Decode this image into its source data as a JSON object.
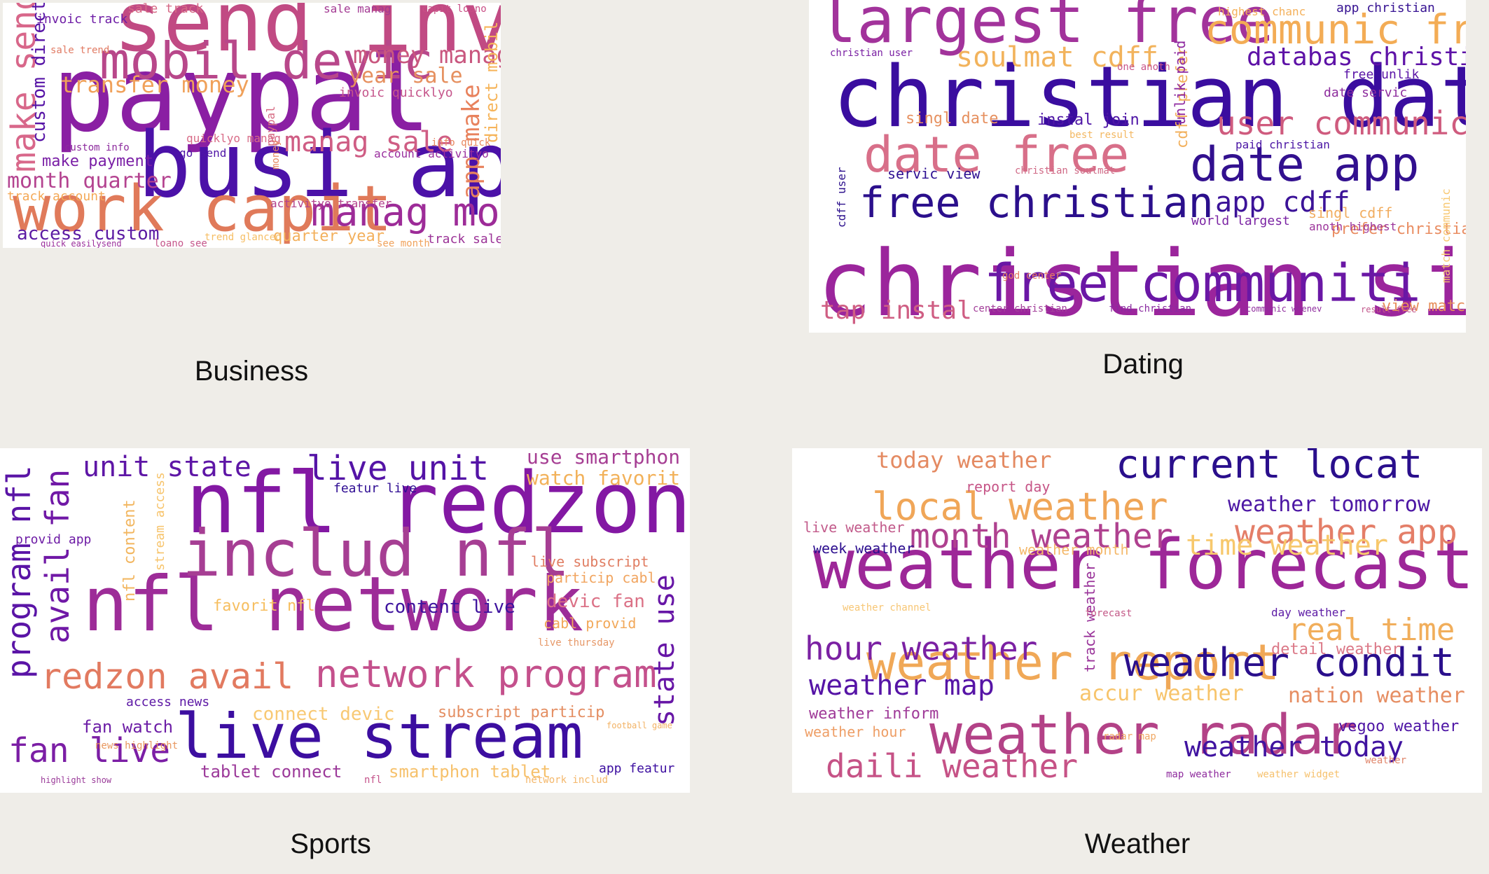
{
  "panels": [
    {
      "caption": "Business",
      "words": [
        {
          "t": "paypal busi",
          "s": 150,
          "c": "#8a1fa3"
        },
        {
          "t": "busi app",
          "s": 128,
          "c": "#4b11a8"
        },
        {
          "t": "send invoic",
          "s": 118,
          "c": "#c14a83"
        },
        {
          "t": "work capit",
          "s": 90,
          "c": "#e07a5a"
        },
        {
          "t": "mobil devic",
          "s": 72,
          "c": "#b8478a"
        },
        {
          "t": "manag money",
          "s": 56,
          "c": "#9d2c98"
        },
        {
          "t": "make send",
          "s": 48,
          "c": "#d8678a"
        },
        {
          "t": "money manag",
          "s": 34,
          "c": "#c9577f"
        },
        {
          "t": "app make",
          "s": 34,
          "c": "#e8825d"
        },
        {
          "t": "transfer money",
          "s": 32,
          "c": "#f0a15a"
        },
        {
          "t": "manag sale",
          "s": 40,
          "c": "#cf5d84"
        },
        {
          "t": "month quarter",
          "s": 30,
          "c": "#b44390"
        },
        {
          "t": "year sale",
          "s": 30,
          "c": "#e6905f"
        },
        {
          "t": "access custom",
          "s": 26,
          "c": "#5c1ba3"
        },
        {
          "t": "quarter year",
          "s": 22,
          "c": "#f3b05c"
        },
        {
          "t": "make payment",
          "s": 22,
          "c": "#7a1fa6"
        },
        {
          "t": "track sale",
          "s": 18,
          "c": "#9b3397"
        },
        {
          "t": "custom direct",
          "s": 26,
          "c": "#5613a6"
        },
        {
          "t": "direct mobil",
          "s": 24,
          "c": "#f6b45a"
        },
        {
          "t": "invoic quicklyo",
          "s": 18,
          "c": "#c5558b"
        },
        {
          "t": "account activityo",
          "s": 16,
          "c": "#9a2f9e"
        },
        {
          "t": "track account",
          "s": 18,
          "c": "#f4a855"
        },
        {
          "t": "sale track",
          "s": 18,
          "c": "#d66a86"
        },
        {
          "t": "invoic track",
          "s": 18,
          "c": "#6e1da6"
        },
        {
          "t": "capit loano",
          "s": 14,
          "c": "#c94f86"
        },
        {
          "t": "sale manag",
          "s": 16,
          "c": "#a33a93"
        },
        {
          "t": "see month",
          "s": 14,
          "c": "#f0a35c"
        },
        {
          "t": "go send",
          "s": 16,
          "c": "#4f14a6"
        },
        {
          "t": "quicklyo manag",
          "s": 16,
          "c": "#d86b87"
        },
        {
          "t": "custom info",
          "s": 14,
          "c": "#8c2a9d"
        },
        {
          "t": "info quick",
          "s": 14,
          "c": "#e8875f"
        },
        {
          "t": "sale trend",
          "s": 14,
          "c": "#e17b64"
        },
        {
          "t": "activityo transfer",
          "s": 16,
          "c": "#b3428c"
        },
        {
          "t": "trend glanceo",
          "s": 14,
          "c": "#f6be64"
        },
        {
          "t": "quick easilysend",
          "s": 12,
          "c": "#9b2f9c"
        },
        {
          "t": "loano see",
          "s": 14,
          "c": "#c6578b"
        },
        {
          "t": "paypal",
          "s": 16,
          "c": "#d66b83"
        },
        {
          "t": "money",
          "s": 14,
          "c": "#e78861"
        }
      ]
    },
    {
      "caption": "Dating",
      "words": [
        {
          "t": "christian singl",
          "s": 130,
          "c": "#9b259c"
        },
        {
          "t": "christian date",
          "s": 120,
          "c": "#3a0d9f"
        },
        {
          "t": "largest free",
          "s": 90,
          "c": "#a2339b"
        },
        {
          "t": "free communiti",
          "s": 74,
          "c": "#6a17a5"
        },
        {
          "t": "date free",
          "s": 70,
          "c": "#d86f89"
        },
        {
          "t": "date app",
          "s": 68,
          "c": "#32108f"
        },
        {
          "t": "free christian",
          "s": 60,
          "c": "#2b0f8c"
        },
        {
          "t": "communic free",
          "s": 58,
          "c": "#f3ac55"
        },
        {
          "t": "user communic",
          "s": 46,
          "c": "#cf5b7e"
        },
        {
          "t": "soulmat cdff",
          "s": 40,
          "c": "#f2b35c"
        },
        {
          "t": "app cdff",
          "s": 40,
          "c": "#3b1298"
        },
        {
          "t": "databas christian",
          "s": 36,
          "c": "#5e12a7"
        },
        {
          "t": "tap instal",
          "s": 36,
          "c": "#cf5e83"
        },
        {
          "t": "singl date",
          "s": 22,
          "c": "#e6905f"
        },
        {
          "t": "instal join",
          "s": 22,
          "c": "#4e15a6"
        },
        {
          "t": "view match",
          "s": 22,
          "c": "#e7905d"
        },
        {
          "t": "servic view",
          "s": 20,
          "c": "#2e1092"
        },
        {
          "t": "singl cdff",
          "s": 20,
          "c": "#f1ad60"
        },
        {
          "t": "date servic",
          "s": 18,
          "c": "#8d2c9d"
        },
        {
          "t": "world largest",
          "s": 18,
          "c": "#7a23a3"
        },
        {
          "t": "free unlik",
          "s": 18,
          "c": "#5a14a6"
        },
        {
          "t": "paid christian",
          "s": 16,
          "c": "#4a15a4"
        },
        {
          "t": "highest chanc",
          "s": 16,
          "c": "#f4b15c"
        },
        {
          "t": "app christian",
          "s": 18,
          "c": "#361292"
        },
        {
          "t": "christian user",
          "s": 14,
          "c": "#7a20a3"
        },
        {
          "t": "cdff user",
          "s": 16,
          "c": "#2b0f8c"
        },
        {
          "t": "cdff prefer",
          "s": 22,
          "c": "#f2b05c"
        },
        {
          "t": "prefer christian",
          "s": 22,
          "c": "#e98d62"
        },
        {
          "t": "unlik paid",
          "s": 20,
          "c": "#8e289f"
        },
        {
          "t": "anoth highest",
          "s": 16,
          "c": "#9c349a"
        },
        {
          "t": "christian soulmat",
          "s": 14,
          "c": "#d06a86"
        },
        {
          "t": "find christian",
          "s": 14,
          "c": "#8a2aa0"
        },
        {
          "t": "center christian",
          "s": 14,
          "c": "#a3409a"
        },
        {
          "t": "communic whenev",
          "s": 12,
          "c": "#8f2c9e"
        },
        {
          "t": "result free",
          "s": 12,
          "c": "#c1558a"
        },
        {
          "t": "one anoth",
          "s": 14,
          "c": "#c8568a"
        },
        {
          "t": "best result",
          "s": 14,
          "c": "#f3b862"
        },
        {
          "t": "god center",
          "s": 14,
          "c": "#e47d63"
        },
        {
          "t": "match communic",
          "s": 16,
          "c": "#f8c872"
        }
      ]
    },
    {
      "caption": "Sports",
      "words": [
        {
          "t": "nfl redzon",
          "s": 120,
          "c": "#8318a3"
        },
        {
          "t": "nfl network",
          "s": 108,
          "c": "#9d2c98"
        },
        {
          "t": "includ nfl",
          "s": 92,
          "c": "#a63e93"
        },
        {
          "t": "live stream",
          "s": 88,
          "c": "#3c0ea0"
        },
        {
          "t": "network program",
          "s": 54,
          "c": "#c4508c"
        },
        {
          "t": "redzon avail",
          "s": 50,
          "c": "#e27a60"
        },
        {
          "t": "live unit",
          "s": 48,
          "c": "#5413a6"
        },
        {
          "t": "fan live",
          "s": 48,
          "c": "#7b1ea5"
        },
        {
          "t": "avail fan",
          "s": 46,
          "c": "#7018a6"
        },
        {
          "t": "program nfl",
          "s": 46,
          "c": "#5a14a6"
        },
        {
          "t": "unit state",
          "s": 40,
          "c": "#5e16a6"
        },
        {
          "t": "use smartphon",
          "s": 28,
          "c": "#a63e93"
        },
        {
          "t": "watch favorit",
          "s": 28,
          "c": "#f2b159"
        },
        {
          "t": "connect devic",
          "s": 26,
          "c": "#f8c974"
        },
        {
          "t": "content live",
          "s": 26,
          "c": "#3e139e"
        },
        {
          "t": "devic fan",
          "s": 26,
          "c": "#db7186"
        },
        {
          "t": "state use",
          "s": 40,
          "c": "#6716a6"
        },
        {
          "t": "subscript particip",
          "s": 22,
          "c": "#e48e62"
        },
        {
          "t": "favorit nfl",
          "s": 22,
          "c": "#f6be5f"
        },
        {
          "t": "tablet connect",
          "s": 24,
          "c": "#9c3a9a"
        },
        {
          "t": "smartphon tablet",
          "s": 24,
          "c": "#f6c16c"
        },
        {
          "t": "fan watch",
          "s": 24,
          "c": "#6c1da6"
        },
        {
          "t": "live subscript",
          "s": 20,
          "c": "#e07d62"
        },
        {
          "t": "particip cabl",
          "s": 20,
          "c": "#f1a560"
        },
        {
          "t": "cabl provid",
          "s": 20,
          "c": "#f2a859"
        },
        {
          "t": "provid app",
          "s": 18,
          "c": "#6d1ba5"
        },
        {
          "t": "access news",
          "s": 18,
          "c": "#5c17a5"
        },
        {
          "t": "app featur",
          "s": 18,
          "c": "#3c0ea0"
        },
        {
          "t": "featur live",
          "s": 18,
          "c": "#2f0d93"
        },
        {
          "t": "stream access",
          "s": 18,
          "c": "#f7c46c"
        },
        {
          "t": "nfl content",
          "s": 22,
          "c": "#f2b65f"
        },
        {
          "t": "news highlight",
          "s": 14,
          "c": "#e8975f"
        },
        {
          "t": "network includ",
          "s": 14,
          "c": "#f4b76a"
        },
        {
          "t": "live thursday",
          "s": 14,
          "c": "#e69868"
        },
        {
          "t": "football game",
          "s": 12,
          "c": "#f2b264"
        },
        {
          "t": "highlight show",
          "s": 12,
          "c": "#9a3b99"
        },
        {
          "t": "nfl",
          "s": 14,
          "c": "#c4548b"
        }
      ]
    },
    {
      "caption": "Weather",
      "words": [
        {
          "t": "weather forecast",
          "s": 98,
          "c": "#9d2798"
        },
        {
          "t": "weather radar",
          "s": 78,
          "c": "#b34287"
        },
        {
          "t": "weather report",
          "s": 70,
          "c": "#f0a857"
        },
        {
          "t": "current locat",
          "s": 56,
          "c": "#2a0f8c"
        },
        {
          "t": "weather condit",
          "s": 56,
          "c": "#2a0f8c"
        },
        {
          "t": "local weather",
          "s": 54,
          "c": "#f0a658"
        },
        {
          "t": "month weather",
          "s": 48,
          "c": "#af418f"
        },
        {
          "t": "weather app",
          "s": 48,
          "c": "#e47e68"
        },
        {
          "t": "hour weather",
          "s": 46,
          "c": "#7b21a3"
        },
        {
          "t": "daili weather",
          "s": 46,
          "c": "#c65286"
        },
        {
          "t": "real time",
          "s": 44,
          "c": "#f1ae5b"
        },
        {
          "t": "time weather",
          "s": 40,
          "c": "#f7c86c"
        },
        {
          "t": "weather map",
          "s": 40,
          "c": "#5614a6"
        },
        {
          "t": "weather today",
          "s": 40,
          "c": "#4013a0"
        },
        {
          "t": "today weather",
          "s": 32,
          "c": "#e48a62"
        },
        {
          "t": "weather tomorrow",
          "s": 30,
          "c": "#4c16a4"
        },
        {
          "t": "accur weather",
          "s": 30,
          "c": "#f7c46b"
        },
        {
          "t": "nation weather",
          "s": 30,
          "c": "#e68e63"
        },
        {
          "t": "vegoo weather",
          "s": 22,
          "c": "#4d14a5"
        },
        {
          "t": "detail weather",
          "s": 22,
          "c": "#db7887"
        },
        {
          "t": "weather inform",
          "s": 22,
          "c": "#9f3a98"
        },
        {
          "t": "weather hour",
          "s": 20,
          "c": "#ee9e66"
        },
        {
          "t": "week weather",
          "s": 20,
          "c": "#2d0f8f"
        },
        {
          "t": "live weather",
          "s": 20,
          "c": "#c25b8b"
        },
        {
          "t": "weather month",
          "s": 20,
          "c": "#f4b86a"
        },
        {
          "t": "report day",
          "s": 20,
          "c": "#c65587"
        },
        {
          "t": "day weather",
          "s": 16,
          "c": "#5c1aa5"
        },
        {
          "t": "track weather",
          "s": 20,
          "c": "#9a339a"
        },
        {
          "t": "radar map",
          "s": 14,
          "c": "#f0a863"
        },
        {
          "t": "map weather",
          "s": 14,
          "c": "#8f2c9e"
        },
        {
          "t": "weather channel",
          "s": 14,
          "c": "#f7c675"
        },
        {
          "t": "weather widget",
          "s": 14,
          "c": "#f6c16d"
        },
        {
          "t": "forecast",
          "s": 14,
          "c": "#c45a88"
        },
        {
          "t": "weather",
          "s": 14,
          "c": "#e0876c"
        }
      ]
    }
  ]
}
